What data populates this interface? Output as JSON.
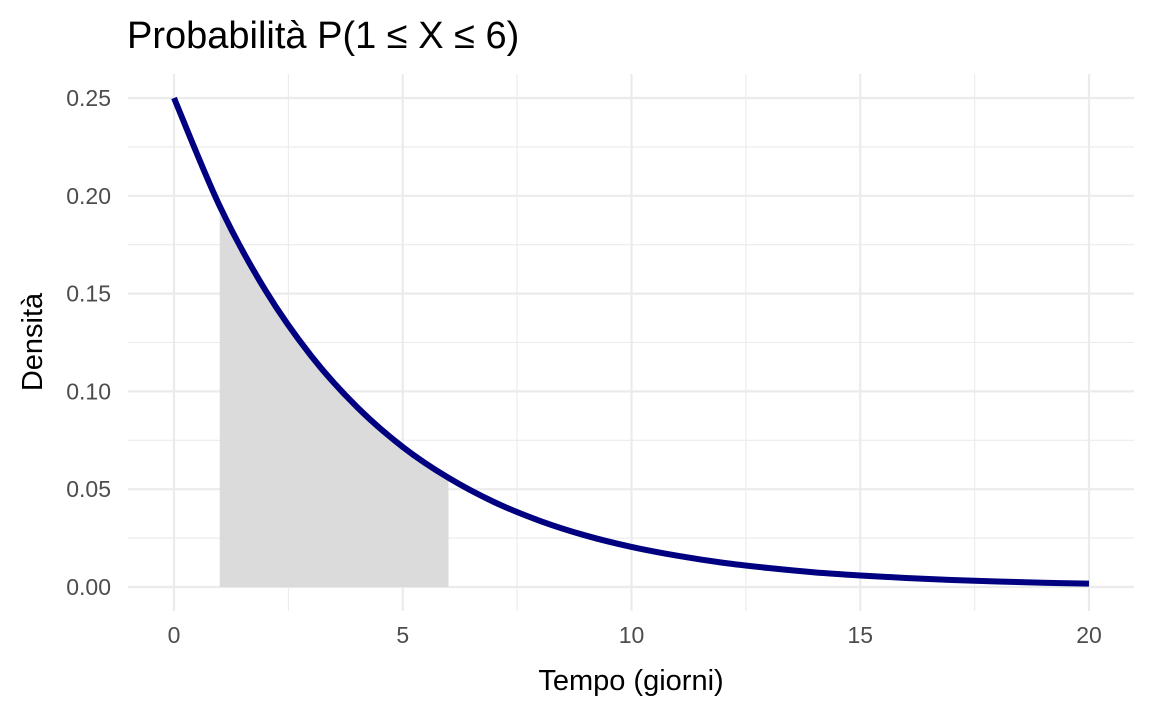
{
  "chart_data": {
    "type": "area",
    "title": "Probabilità P(1 ≤ X ≤ 6)",
    "xlabel": "Tempo (giorni)",
    "ylabel": "Densità",
    "xlim": [
      0,
      20
    ],
    "ylim": [
      0,
      0.25
    ],
    "x_ticks": [
      0,
      5,
      10,
      15,
      20
    ],
    "x_tick_labels": [
      "0",
      "5",
      "10",
      "15",
      "20"
    ],
    "y_ticks": [
      0,
      0.05,
      0.1,
      0.15,
      0.2,
      0.25
    ],
    "y_tick_labels": [
      "0.00",
      "0.05",
      "0.10",
      "0.15",
      "0.20",
      "0.25"
    ],
    "grid": true,
    "legend": "none",
    "curve": {
      "x": [
        0,
        1,
        2,
        3,
        4,
        5,
        6,
        7,
        8,
        9,
        10,
        11,
        12,
        13,
        14,
        15,
        16,
        17,
        18,
        19,
        20
      ],
      "y": [
        0.25,
        0.1947,
        0.1516,
        0.1181,
        0.092,
        0.0716,
        0.0558,
        0.0434,
        0.0338,
        0.0263,
        0.0205,
        0.016,
        0.0124,
        0.0097,
        0.0075,
        0.0059,
        0.0046,
        0.0036,
        0.0028,
        0.0022,
        0.0017
      ],
      "color": "#000080"
    },
    "shaded_region": {
      "x_from": 1,
      "x_to": 6,
      "x": [
        1,
        1.5,
        2,
        2.5,
        3,
        3.5,
        4,
        4.5,
        5,
        5.5,
        6
      ],
      "y": [
        0.1947,
        0.1718,
        0.1516,
        0.1338,
        0.1181,
        0.1042,
        0.092,
        0.0812,
        0.0716,
        0.0632,
        0.0558
      ],
      "color": "#d9d9d9"
    }
  }
}
